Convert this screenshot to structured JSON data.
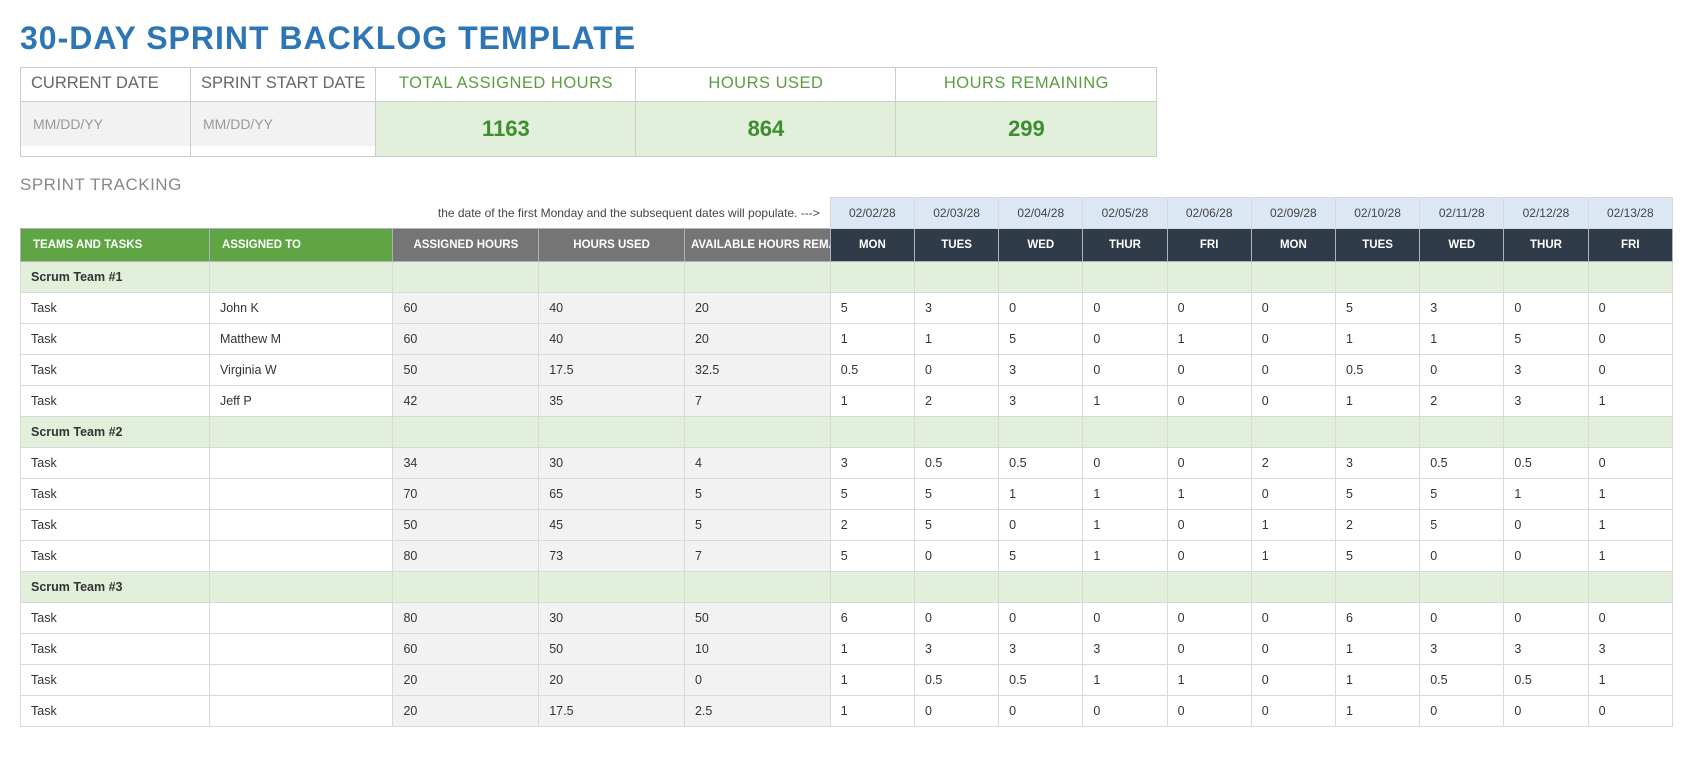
{
  "title": "30-DAY SPRINT BACKLOG TEMPLATE",
  "summary": {
    "current_date": {
      "label": "CURRENT DATE",
      "value": "MM/DD/YY"
    },
    "sprint_start_date": {
      "label": "SPRINT START DATE",
      "value": "MM/DD/YY"
    },
    "total_assigned": {
      "label": "TOTAL ASSIGNED HOURS",
      "value": "1163"
    },
    "hours_used": {
      "label": "HOURS USED",
      "value": "864"
    },
    "hours_remaining": {
      "label": "HOURS REMAINING",
      "value": "299"
    }
  },
  "section_title": "SPRINT TRACKING",
  "hint": "the date of the first Monday and the subsequent dates will populate. --->",
  "columns": {
    "teams": "TEAMS AND TASKS",
    "assigned_to": "ASSIGNED TO",
    "assigned_hours": "ASSIGNED HOURS",
    "hours_used": "HOURS USED",
    "available": "AVAILABLE HOURS REMAINING"
  },
  "dates": [
    "02/02/28",
    "02/03/28",
    "02/04/28",
    "02/05/28",
    "02/06/28",
    "02/09/28",
    "02/10/28",
    "02/11/28",
    "02/12/28",
    "02/13/28"
  ],
  "days": [
    "MON",
    "TUES",
    "WED",
    "THUR",
    "FRI",
    "MON",
    "TUES",
    "WED",
    "THUR",
    "FRI"
  ],
  "groups": [
    {
      "name": "Scrum Team #1",
      "tasks": [
        {
          "task": "Task",
          "assignee": "John K",
          "assigned": "60",
          "used": "40",
          "avail": "20",
          "d": [
            "5",
            "3",
            "0",
            "0",
            "0",
            "0",
            "5",
            "3",
            "0",
            "0"
          ]
        },
        {
          "task": "Task",
          "assignee": "Matthew M",
          "assigned": "60",
          "used": "40",
          "avail": "20",
          "d": [
            "1",
            "1",
            "5",
            "0",
            "1",
            "0",
            "1",
            "1",
            "5",
            "0"
          ]
        },
        {
          "task": "Task",
          "assignee": "Virginia W",
          "assigned": "50",
          "used": "17.5",
          "avail": "32.5",
          "d": [
            "0.5",
            "0",
            "3",
            "0",
            "0",
            "0",
            "0.5",
            "0",
            "3",
            "0"
          ]
        },
        {
          "task": "Task",
          "assignee": "Jeff P",
          "assigned": "42",
          "used": "35",
          "avail": "7",
          "d": [
            "1",
            "2",
            "3",
            "1",
            "0",
            "0",
            "1",
            "2",
            "3",
            "1"
          ]
        }
      ]
    },
    {
      "name": "Scrum Team #2",
      "tasks": [
        {
          "task": "Task",
          "assignee": "",
          "assigned": "34",
          "used": "30",
          "avail": "4",
          "d": [
            "3",
            "0.5",
            "0.5",
            "0",
            "0",
            "2",
            "3",
            "0.5",
            "0.5",
            "0"
          ]
        },
        {
          "task": "Task",
          "assignee": "",
          "assigned": "70",
          "used": "65",
          "avail": "5",
          "d": [
            "5",
            "5",
            "1",
            "1",
            "1",
            "0",
            "5",
            "5",
            "1",
            "1"
          ]
        },
        {
          "task": "Task",
          "assignee": "",
          "assigned": "50",
          "used": "45",
          "avail": "5",
          "d": [
            "2",
            "5",
            "0",
            "1",
            "0",
            "1",
            "2",
            "5",
            "0",
            "1"
          ]
        },
        {
          "task": "Task",
          "assignee": "",
          "assigned": "80",
          "used": "73",
          "avail": "7",
          "d": [
            "5",
            "0",
            "5",
            "1",
            "0",
            "1",
            "5",
            "0",
            "0",
            "1"
          ]
        }
      ]
    },
    {
      "name": "Scrum Team #3",
      "tasks": [
        {
          "task": "Task",
          "assignee": "",
          "assigned": "80",
          "used": "30",
          "avail": "50",
          "d": [
            "6",
            "0",
            "0",
            "0",
            "0",
            "0",
            "6",
            "0",
            "0",
            "0"
          ]
        },
        {
          "task": "Task",
          "assignee": "",
          "assigned": "60",
          "used": "50",
          "avail": "10",
          "d": [
            "1",
            "3",
            "3",
            "3",
            "0",
            "0",
            "1",
            "3",
            "3",
            "3"
          ]
        },
        {
          "task": "Task",
          "assignee": "",
          "assigned": "20",
          "used": "20",
          "avail": "0",
          "d": [
            "1",
            "0.5",
            "0.5",
            "1",
            "1",
            "0",
            "1",
            "0.5",
            "0.5",
            "1"
          ]
        },
        {
          "task": "Task",
          "assignee": "",
          "assigned": "20",
          "used": "17.5",
          "avail": "2.5",
          "d": [
            "1",
            "0",
            "0",
            "0",
            "0",
            "0",
            "1",
            "0",
            "0",
            "0"
          ]
        }
      ]
    }
  ],
  "colors": {
    "title": "#2e75b6",
    "green_header": "#5fa544",
    "dark_header": "#2f3b48",
    "grey_header": "#757575",
    "light_green": "#e2efdb",
    "light_blue": "#dbe7f3",
    "light_grey": "#f2f2f2",
    "metric_text": "#3e8e2f",
    "metric_label": "#5a9e3f"
  }
}
